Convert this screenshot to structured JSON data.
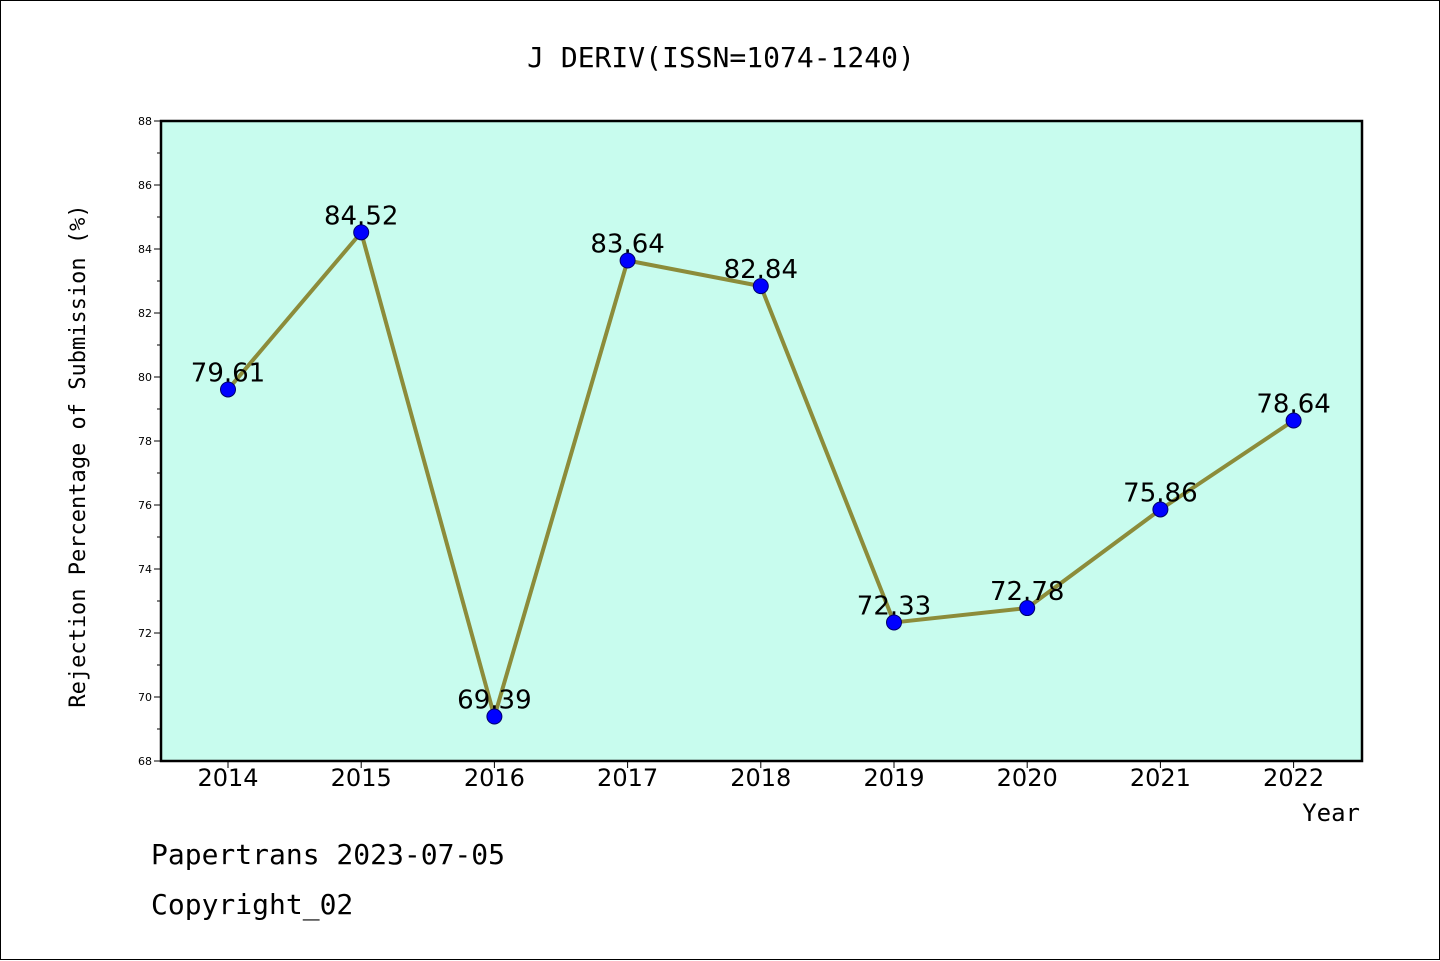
{
  "chart_data": {
    "type": "line",
    "title": "J DERIV(ISSN=1074-1240)",
    "xlabel": "Year",
    "ylabel": "Rejection Percentage of Submission (%)",
    "categories": [
      "2014",
      "2015",
      "2016",
      "2017",
      "2018",
      "2019",
      "2020",
      "2021",
      "2022"
    ],
    "values": [
      79.61,
      84.52,
      69.39,
      83.64,
      82.84,
      72.33,
      72.78,
      75.86,
      78.64
    ],
    "data_labels": [
      "79.61",
      "84.52",
      "69.39",
      "83.64",
      "82.84",
      "72.33",
      "72.78",
      "75.86",
      "78.64"
    ],
    "ylim": [
      68,
      88
    ],
    "yticks": [
      "68",
      "70",
      "72",
      "74",
      "76",
      "78",
      "80",
      "82",
      "84",
      "86",
      "88"
    ],
    "grid": false,
    "legend": "none",
    "colors": {
      "plot_background": "#c8fcee",
      "line": "#8c8c3a",
      "marker": "#0000ff"
    }
  },
  "footer": {
    "line1": "Papertrans 2023-07-05",
    "line2": "Copyright_02"
  }
}
